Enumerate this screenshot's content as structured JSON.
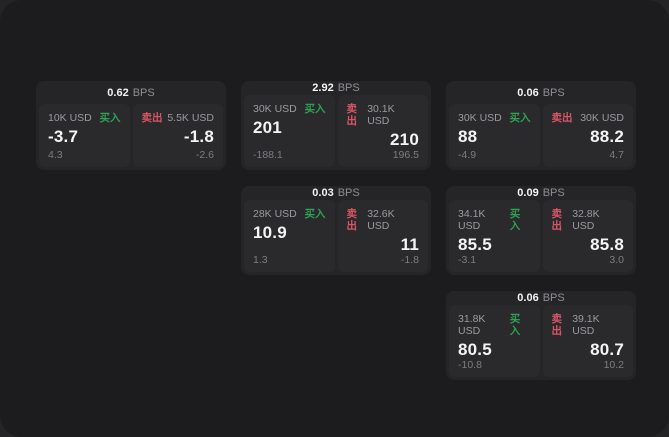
{
  "page": {
    "bps_suffix": "BPS",
    "buy_label": "买入",
    "sell_label": "卖出"
  },
  "colors": {
    "outer_background": "#242426",
    "panel_background": "#1c1c1e",
    "card_background": "#252528",
    "tile_background": "#2a2a2d",
    "buy_green": "#2ea052",
    "sell_red": "#d95565",
    "text_primary": "#f4f4f5",
    "text_muted": "#9b9b9f",
    "text_dim": "#7d7d81"
  },
  "cards": [
    {
      "bps": "0.62",
      "row": 1,
      "col": 1,
      "buy": {
        "amount": "10K USD",
        "price": "-3.7",
        "change": "4.3"
      },
      "sell": {
        "amount": "5.5K USD",
        "price": "-1.8",
        "change": "-2.6"
      }
    },
    {
      "bps": "2.92",
      "row": 1,
      "col": 2,
      "buy": {
        "amount": "30K USD",
        "price": "201",
        "change": "-188.1"
      },
      "sell": {
        "amount": "30.1K USD",
        "price": "210",
        "change": "196.5"
      }
    },
    {
      "bps": "0.06",
      "row": 1,
      "col": 3,
      "buy": {
        "amount": "30K USD",
        "price": "88",
        "change": "-4.9"
      },
      "sell": {
        "amount": "30K USD",
        "price": "88.2",
        "change": "4.7"
      }
    },
    {
      "bps": "0.03",
      "row": 2,
      "col": 2,
      "buy": {
        "amount": "28K USD",
        "price": "10.9",
        "change": "1.3"
      },
      "sell": {
        "amount": "32.6K USD",
        "price": "11",
        "change": "-1.8"
      }
    },
    {
      "bps": "0.09",
      "row": 2,
      "col": 3,
      "buy": {
        "amount": "34.1K USD",
        "price": "85.5",
        "change": "-3.1"
      },
      "sell": {
        "amount": "32.8K USD",
        "price": "85.8",
        "change": "3.0"
      }
    },
    {
      "bps": "0.06",
      "row": 3,
      "col": 3,
      "buy": {
        "amount": "31.8K USD",
        "price": "80.5",
        "change": "-10.8"
      },
      "sell": {
        "amount": "39.1K USD",
        "price": "80.7",
        "change": "10.2"
      }
    }
  ]
}
